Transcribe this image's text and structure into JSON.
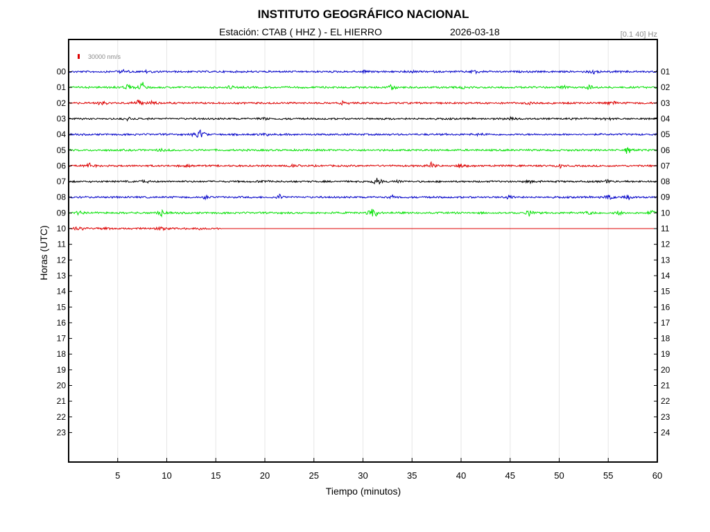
{
  "header": {
    "title": "INSTITUTO GEOGRÁFICO NACIONAL",
    "station": "Estación:  CTAB ( HHZ ) - EL HIERRO",
    "date": "2026-03-18",
    "filter": "[0.1 40] Hz",
    "scale_label": "30000 nm/s",
    "scale_color": "#dd0000"
  },
  "chart_data": {
    "type": "line",
    "title": "INSTITUTO GEOGRÁFICO NACIONAL",
    "xlabel": "Tiempo (minutos)",
    "ylabel": "Horas (UTC)",
    "xlim": [
      0,
      60
    ],
    "x_ticks": [
      5,
      10,
      15,
      20,
      25,
      30,
      35,
      40,
      45,
      50,
      55,
      60
    ],
    "grid": true,
    "left_hour_labels": [
      "00",
      "01",
      "02",
      "03",
      "04",
      "05",
      "06",
      "07",
      "08",
      "09",
      "10",
      "11",
      "12",
      "13",
      "14",
      "15",
      "16",
      "17",
      "18",
      "19",
      "20",
      "21",
      "22",
      "23"
    ],
    "right_hour_labels": [
      "01",
      "02",
      "03",
      "04",
      "05",
      "06",
      "07",
      "08",
      "09",
      "10",
      "11",
      "12",
      "13",
      "14",
      "15",
      "16",
      "17",
      "18",
      "19",
      "20",
      "21",
      "22",
      "23",
      "24"
    ],
    "color_cycle": [
      "#0000c8",
      "#00e000",
      "#dd0000",
      "#000000"
    ],
    "series": [
      {
        "hour": "00",
        "data_end_min": 60,
        "events": [
          [
            5.5,
            0.4
          ],
          [
            8,
            0.3
          ],
          [
            30,
            0.3
          ],
          [
            35,
            0.3
          ],
          [
            41.5,
            0.4
          ],
          [
            53.5,
            0.7
          ]
        ]
      },
      {
        "hour": "01",
        "data_end_min": 60,
        "events": [
          [
            6,
            0.5
          ],
          [
            7.5,
            0.9
          ],
          [
            16.5,
            0.3
          ],
          [
            33,
            0.7
          ],
          [
            40,
            0.3
          ],
          [
            50.5,
            0.4
          ],
          [
            53,
            0.4
          ]
        ]
      },
      {
        "hour": "02",
        "data_end_min": 60,
        "events": [
          [
            3.5,
            0.5
          ],
          [
            7,
            0.9
          ],
          [
            8.5,
            0.4
          ],
          [
            28,
            0.5
          ],
          [
            47,
            0.3
          ],
          [
            55.5,
            0.4
          ]
        ]
      },
      {
        "hour": "03",
        "data_end_min": 60,
        "events": [
          [
            6,
            0.3
          ],
          [
            20,
            0.3
          ],
          [
            45,
            0.3
          ],
          [
            55,
            0.3
          ]
        ]
      },
      {
        "hour": "04",
        "data_end_min": 60,
        "events": [
          [
            13.3,
            1.8
          ],
          [
            20,
            0.3
          ],
          [
            42,
            0.3
          ]
        ]
      },
      {
        "hour": "05",
        "data_end_min": 60,
        "events": [
          [
            9.5,
            0.3
          ],
          [
            57,
            1.0
          ]
        ]
      },
      {
        "hour": "06",
        "data_end_min": 60,
        "events": [
          [
            2,
            0.6
          ],
          [
            12,
            0.4
          ],
          [
            23,
            0.3
          ],
          [
            37,
            0.7
          ],
          [
            40,
            0.5
          ],
          [
            50,
            0.4
          ]
        ]
      },
      {
        "hour": "07",
        "data_end_min": 60,
        "events": [
          [
            8,
            0.6
          ],
          [
            20,
            0.3
          ],
          [
            31.5,
            1.1
          ],
          [
            33.5,
            0.4
          ],
          [
            47,
            0.3
          ],
          [
            55,
            0.4
          ]
        ]
      },
      {
        "hour": "08",
        "data_end_min": 60,
        "events": [
          [
            14,
            0.5
          ],
          [
            21.5,
            0.6
          ],
          [
            33,
            0.4
          ],
          [
            45,
            0.4
          ],
          [
            55,
            0.7
          ],
          [
            57,
            0.4
          ]
        ]
      },
      {
        "hour": "09",
        "data_end_min": 60,
        "events": [
          [
            1,
            0.4
          ],
          [
            9.5,
            0.8
          ],
          [
            31,
            1.6
          ],
          [
            47,
            0.6
          ],
          [
            53,
            0.5
          ],
          [
            56,
            0.5
          ],
          [
            59.5,
            0.5
          ]
        ]
      },
      {
        "hour": "10",
        "data_end_min": 15.6,
        "events": [
          [
            1,
            0.6
          ],
          [
            3.5,
            0.4
          ],
          [
            9.5,
            0.6
          ],
          [
            13.5,
            0.3
          ]
        ]
      }
    ]
  }
}
